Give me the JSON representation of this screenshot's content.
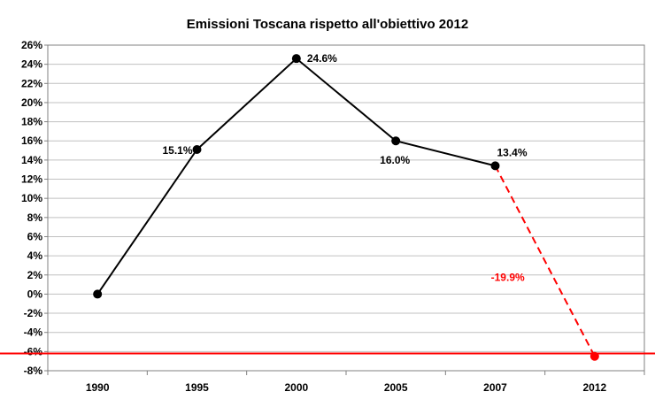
{
  "chart_data": {
    "type": "line",
    "title": "Emissioni Toscana rispetto all'obiettivo 2012",
    "categories": [
      "1990",
      "1995",
      "2000",
      "2005",
      "2007",
      "2012"
    ],
    "series": [
      {
        "values": [
          0,
          15.1,
          24.6,
          16.0,
          13.4,
          null
        ],
        "labels": [
          "",
          "15.1%",
          "24.6%",
          "16.0%",
          "13.4%",
          ""
        ],
        "color": "#000000",
        "style": "solid"
      },
      {
        "values": [
          null,
          null,
          null,
          null,
          13.4,
          -6.5
        ],
        "color": "#ff0000",
        "style": "dashed"
      }
    ],
    "target_line": {
      "value": -6.2,
      "color": "#ff0000"
    },
    "annotation": {
      "text": "-19.9%",
      "color": "#ff0000"
    },
    "ylim": [
      -8,
      26
    ],
    "ytick_step": 2,
    "ytick_labels": [
      "26%",
      "24%",
      "22%",
      "20%",
      "18%",
      "16%",
      "14%",
      "12%",
      "10%",
      "8%",
      "6%",
      "4%",
      "2%",
      "0%",
      "-2%",
      "-4%",
      "-6%",
      "-8%"
    ],
    "grid": true,
    "legend": "none"
  }
}
